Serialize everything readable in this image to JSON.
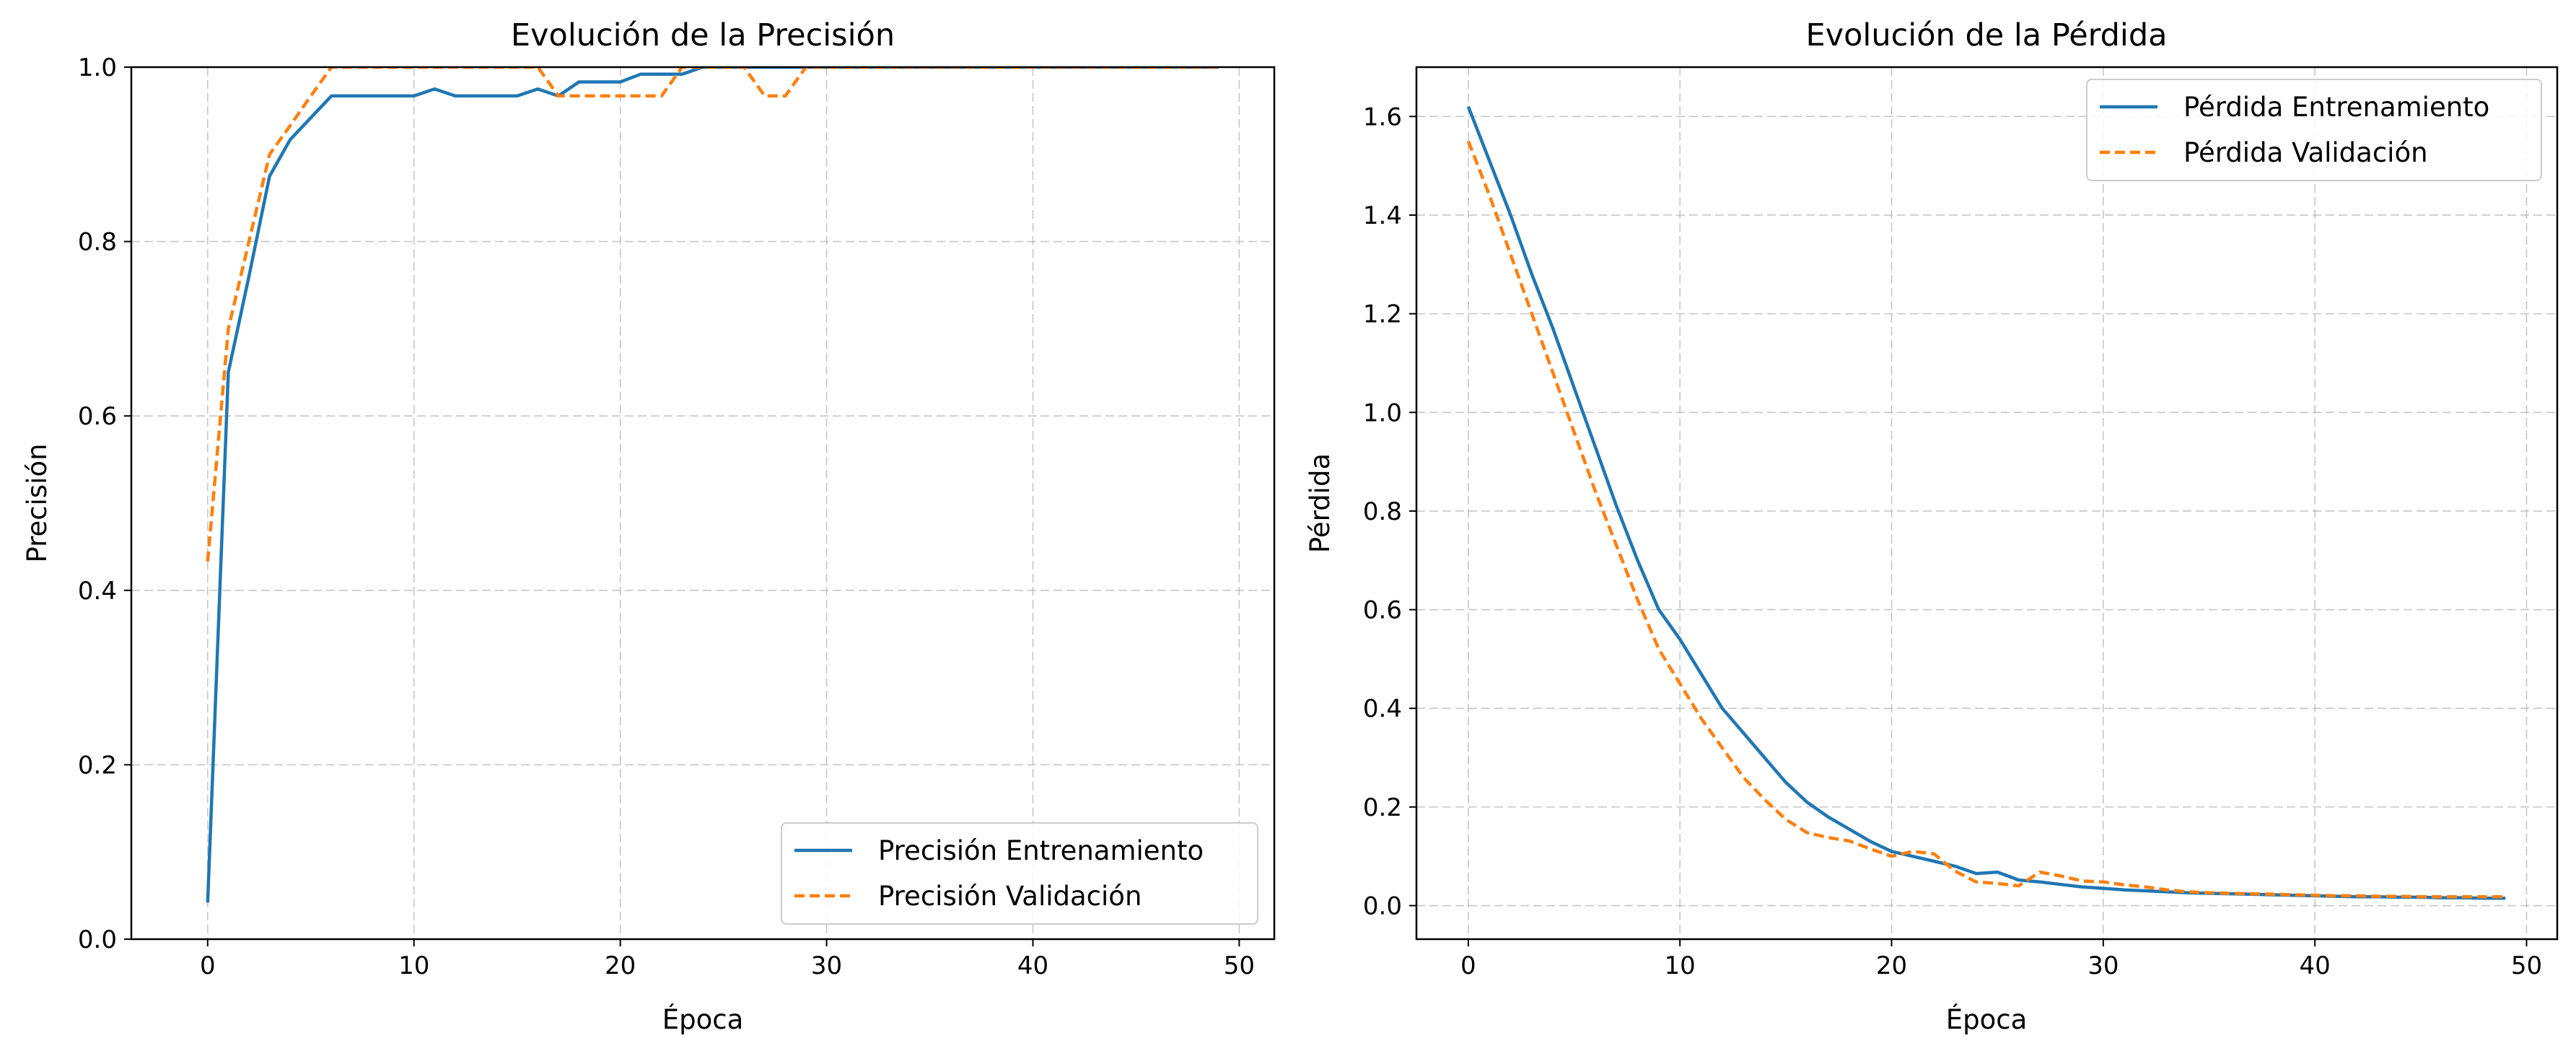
{
  "colors": {
    "train": "#1f77b4",
    "val": "#ff7f0e",
    "grid": "#b0b0b0"
  },
  "chart_data": [
    {
      "type": "line",
      "title": "Evolución de la Precisión",
      "xlabel": "Época",
      "ylabel": "Precisión",
      "xlim": [
        -3.7,
        51.7
      ],
      "ylim": [
        0,
        1.0
      ],
      "xticks": [
        0,
        10,
        20,
        30,
        40,
        50
      ],
      "yticks": [
        0.0,
        0.2,
        0.4,
        0.6,
        0.8,
        1.0
      ],
      "grid": true,
      "legend_loc": "lower-right",
      "x": [
        0,
        1,
        2,
        3,
        4,
        5,
        6,
        7,
        8,
        9,
        10,
        11,
        12,
        13,
        14,
        15,
        16,
        17,
        18,
        19,
        20,
        21,
        22,
        23,
        24,
        25,
        26,
        27,
        28,
        29,
        30,
        31,
        32,
        33,
        34,
        35,
        36,
        37,
        38,
        39,
        40,
        41,
        42,
        43,
        44,
        45,
        46,
        47,
        48,
        49
      ],
      "series": [
        {
          "name": "Precisión Entrenamiento",
          "style": "solid",
          "values": [
            0.042,
            0.65,
            0.76,
            0.875,
            0.917,
            0.942,
            0.967,
            0.967,
            0.967,
            0.967,
            0.967,
            0.975,
            0.967,
            0.967,
            0.967,
            0.967,
            0.975,
            0.967,
            0.983,
            0.983,
            0.983,
            0.992,
            0.992,
            0.992,
            1.0,
            1.0,
            1.0,
            1.0,
            1.0,
            1.0,
            1.0,
            1.0,
            1.0,
            1.0,
            1.0,
            1.0,
            1.0,
            1.0,
            1.0,
            1.0,
            1.0,
            1.0,
            1.0,
            1.0,
            1.0,
            1.0,
            1.0,
            1.0,
            1.0,
            1.0
          ]
        },
        {
          "name": "Precisión Validación",
          "style": "dashed",
          "values": [
            0.433,
            0.7,
            0.8,
            0.9,
            0.933,
            0.967,
            1.0,
            1.0,
            1.0,
            1.0,
            1.0,
            1.0,
            1.0,
            1.0,
            1.0,
            1.0,
            1.0,
            0.967,
            0.967,
            0.967,
            0.967,
            0.967,
            0.967,
            1.0,
            1.0,
            1.0,
            1.0,
            0.967,
            0.967,
            1.0,
            1.0,
            1.0,
            1.0,
            1.0,
            1.0,
            1.0,
            1.0,
            1.0,
            1.0,
            1.0,
            1.0,
            1.0,
            1.0,
            1.0,
            1.0,
            1.0,
            1.0,
            1.0,
            1.0,
            1.0
          ]
        }
      ]
    },
    {
      "type": "line",
      "title": "Evolución de la Pérdida",
      "xlabel": "Época",
      "ylabel": "Pérdida",
      "xlim": [
        -2.45,
        51.45
      ],
      "ylim": [
        -0.068,
        1.7
      ],
      "xticks": [
        0,
        10,
        20,
        30,
        40,
        50
      ],
      "yticks": [
        0.0,
        0.2,
        0.4,
        0.6,
        0.8,
        1.0,
        1.2,
        1.4,
        1.6
      ],
      "grid": true,
      "legend_loc": "upper-right",
      "x": [
        0,
        1,
        2,
        3,
        4,
        5,
        6,
        7,
        8,
        9,
        10,
        11,
        12,
        13,
        14,
        15,
        16,
        17,
        18,
        19,
        20,
        21,
        22,
        23,
        24,
        25,
        26,
        27,
        28,
        29,
        30,
        31,
        32,
        33,
        34,
        35,
        36,
        37,
        38,
        39,
        40,
        41,
        42,
        43,
        44,
        45,
        46,
        47,
        48,
        49
      ],
      "series": [
        {
          "name": "Pérdida Entrenamiento",
          "style": "solid",
          "values": [
            1.62,
            1.51,
            1.4,
            1.28,
            1.17,
            1.05,
            0.93,
            0.81,
            0.7,
            0.6,
            0.54,
            0.47,
            0.4,
            0.35,
            0.3,
            0.25,
            0.21,
            0.18,
            0.155,
            0.13,
            0.11,
            0.1,
            0.09,
            0.08,
            0.065,
            0.068,
            0.052,
            0.048,
            0.043,
            0.038,
            0.035,
            0.032,
            0.03,
            0.028,
            0.026,
            0.025,
            0.024,
            0.023,
            0.022,
            0.021,
            0.02,
            0.019,
            0.018,
            0.018,
            0.017,
            0.017,
            0.016,
            0.016,
            0.015,
            0.015
          ]
        },
        {
          "name": "Pérdida Validación",
          "style": "dashed",
          "values": [
            1.55,
            1.44,
            1.32,
            1.2,
            1.08,
            0.96,
            0.84,
            0.73,
            0.62,
            0.52,
            0.45,
            0.38,
            0.32,
            0.26,
            0.215,
            0.175,
            0.148,
            0.138,
            0.131,
            0.115,
            0.1,
            0.11,
            0.105,
            0.07,
            0.048,
            0.045,
            0.04,
            0.068,
            0.06,
            0.05,
            0.048,
            0.042,
            0.038,
            0.032,
            0.028,
            0.026,
            0.025,
            0.024,
            0.023,
            0.022,
            0.021,
            0.02,
            0.02,
            0.019,
            0.019,
            0.018,
            0.018,
            0.018,
            0.018,
            0.018
          ]
        }
      ]
    }
  ]
}
